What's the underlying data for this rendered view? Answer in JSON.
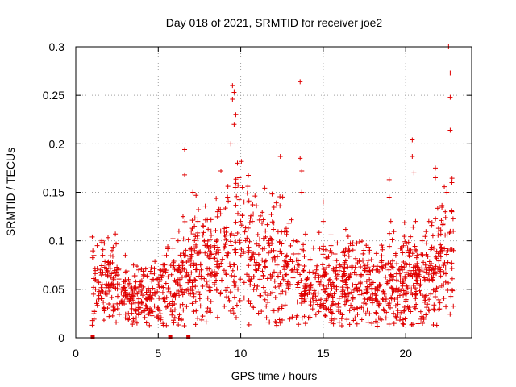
{
  "chart_data": {
    "type": "scatter",
    "title": "Day 018 of 2021, SRMTID for receiver joe2",
    "xlabel": "GPS time / hours",
    "ylabel": "SRMTID / TECUs",
    "xlim": [
      0,
      24
    ],
    "ylim": [
      0,
      0.3
    ],
    "x_ticks": [
      0,
      5,
      10,
      15,
      20
    ],
    "x_tick_labels": [
      "0",
      "5",
      "10",
      "15",
      "20"
    ],
    "y_ticks": [
      0,
      0.05,
      0.1,
      0.15,
      0.2,
      0.25,
      0.3
    ],
    "y_tick_labels": [
      "0",
      "0.05",
      "0.1",
      "0.15",
      "0.2",
      "0.25",
      "0.3"
    ],
    "grid": true,
    "marker": "plus",
    "color": "#e00000",
    "zero_markers_x": [
      1.0,
      5.7,
      6.8
    ],
    "series": [
      {
        "name": "SRMTID",
        "points": [
          [
            1.0,
            0.013
          ],
          [
            1.0,
            0.104
          ],
          [
            1.1,
            0.085
          ],
          [
            1.2,
            0.06
          ],
          [
            1.2,
            0.05
          ],
          [
            1.3,
            0.095
          ],
          [
            1.4,
            0.04
          ],
          [
            1.5,
            0.07
          ],
          [
            1.6,
            0.055
          ],
          [
            1.7,
            0.03
          ],
          [
            1.8,
            0.065
          ],
          [
            1.9,
            0.045
          ],
          [
            2.0,
            0.075
          ],
          [
            2.1,
            0.052
          ],
          [
            2.2,
            0.09
          ],
          [
            2.3,
            0.06
          ],
          [
            2.4,
            0.107
          ],
          [
            2.5,
            0.035
          ],
          [
            2.6,
            0.07
          ],
          [
            2.8,
            0.05
          ],
          [
            3.0,
            0.085
          ],
          [
            3.1,
            0.04
          ],
          [
            3.2,
            0.06
          ],
          [
            3.4,
            0.03
          ],
          [
            3.5,
            0.075
          ],
          [
            3.6,
            0.045
          ],
          [
            3.8,
            0.025
          ],
          [
            3.9,
            0.055
          ],
          [
            4.0,
            0.035
          ],
          [
            4.1,
            0.065
          ],
          [
            4.3,
            0.04
          ],
          [
            4.4,
            0.05
          ],
          [
            4.5,
            0.03
          ],
          [
            4.7,
            0.06
          ],
          [
            4.8,
            0.045
          ],
          [
            5.0,
            0.055
          ],
          [
            5.1,
            0.07
          ],
          [
            5.3,
            0.04
          ],
          [
            5.5,
            0.085
          ],
          [
            5.6,
            0.05
          ],
          [
            5.8,
            0.065
          ],
          [
            6.0,
            0.045
          ],
          [
            6.2,
            0.1
          ],
          [
            6.3,
            0.06
          ],
          [
            6.5,
            0.125
          ],
          [
            6.6,
            0.194
          ],
          [
            6.6,
            0.168
          ],
          [
            6.8,
            0.08
          ],
          [
            7.0,
            0.11
          ],
          [
            7.1,
            0.15
          ],
          [
            7.2,
            0.09
          ],
          [
            7.4,
            0.12
          ],
          [
            7.6,
            0.07
          ],
          [
            7.8,
            0.1
          ],
          [
            8.0,
            0.085
          ],
          [
            8.2,
            0.11
          ],
          [
            8.4,
            0.095
          ],
          [
            8.6,
            0.13
          ],
          [
            8.8,
            0.172
          ],
          [
            9.0,
            0.11
          ],
          [
            9.2,
            0.145
          ],
          [
            9.4,
            0.2
          ],
          [
            9.5,
            0.26
          ],
          [
            9.5,
            0.246
          ],
          [
            9.6,
            0.253
          ],
          [
            9.6,
            0.22
          ],
          [
            9.7,
            0.23
          ],
          [
            9.8,
            0.18
          ],
          [
            9.9,
            0.165
          ],
          [
            10.0,
            0.12
          ],
          [
            10.1,
            0.155
          ],
          [
            10.2,
            0.14
          ],
          [
            10.3,
            0.1
          ],
          [
            10.5,
            0.09
          ],
          [
            10.7,
            0.12
          ],
          [
            10.9,
            0.07
          ],
          [
            11.1,
            0.095
          ],
          [
            11.3,
            0.08
          ],
          [
            11.5,
            0.11
          ],
          [
            11.8,
            0.065
          ],
          [
            12.0,
            0.09
          ],
          [
            12.2,
            0.075
          ],
          [
            12.4,
            0.187
          ],
          [
            12.6,
            0.06
          ],
          [
            12.8,
            0.085
          ],
          [
            13.0,
            0.055
          ],
          [
            13.2,
            0.1
          ],
          [
            13.4,
            0.07
          ],
          [
            13.6,
            0.264
          ],
          [
            13.6,
            0.185
          ],
          [
            13.7,
            0.172
          ],
          [
            13.7,
            0.15
          ],
          [
            13.8,
            0.09
          ],
          [
            14.0,
            0.06
          ],
          [
            14.2,
            0.08
          ],
          [
            14.4,
            0.045
          ],
          [
            14.6,
            0.07
          ],
          [
            14.8,
            0.055
          ],
          [
            15.0,
            0.14
          ],
          [
            15.0,
            0.12
          ],
          [
            15.2,
            0.04
          ],
          [
            15.4,
            0.06
          ],
          [
            15.6,
            0.035
          ],
          [
            15.8,
            0.05
          ],
          [
            16.0,
            0.075
          ],
          [
            16.2,
            0.045
          ],
          [
            16.4,
            0.06
          ],
          [
            16.6,
            0.09
          ],
          [
            16.8,
            0.04
          ],
          [
            17.0,
            0.065
          ],
          [
            17.2,
            0.05
          ],
          [
            17.4,
            0.08
          ],
          [
            17.6,
            0.035
          ],
          [
            17.8,
            0.06
          ],
          [
            18.0,
            0.045
          ],
          [
            18.2,
            0.07
          ],
          [
            18.4,
            0.055
          ],
          [
            18.6,
            0.04
          ],
          [
            18.8,
            0.075
          ],
          [
            19.0,
            0.163
          ],
          [
            19.0,
            0.145
          ],
          [
            19.1,
            0.12
          ],
          [
            19.2,
            0.06
          ],
          [
            19.4,
            0.085
          ],
          [
            19.6,
            0.05
          ],
          [
            19.8,
            0.07
          ],
          [
            20.0,
            0.045
          ],
          [
            20.2,
            0.09
          ],
          [
            20.4,
            0.204
          ],
          [
            20.4,
            0.187
          ],
          [
            20.5,
            0.17
          ],
          [
            20.6,
            0.12
          ],
          [
            20.8,
            0.065
          ],
          [
            21.0,
            0.1
          ],
          [
            21.2,
            0.075
          ],
          [
            21.4,
            0.12
          ],
          [
            21.6,
            0.06
          ],
          [
            21.8,
            0.175
          ],
          [
            21.8,
            0.165
          ],
          [
            22.0,
            0.11
          ],
          [
            22.2,
            0.09
          ],
          [
            22.4,
            0.13
          ],
          [
            22.5,
            0.15
          ],
          [
            22.6,
            0.3
          ],
          [
            22.7,
            0.273
          ],
          [
            22.7,
            0.248
          ],
          [
            22.7,
            0.214
          ],
          [
            22.8,
            0.16
          ],
          [
            22.8,
            0.13
          ],
          [
            22.9,
            0.09
          ]
        ]
      }
    ]
  }
}
